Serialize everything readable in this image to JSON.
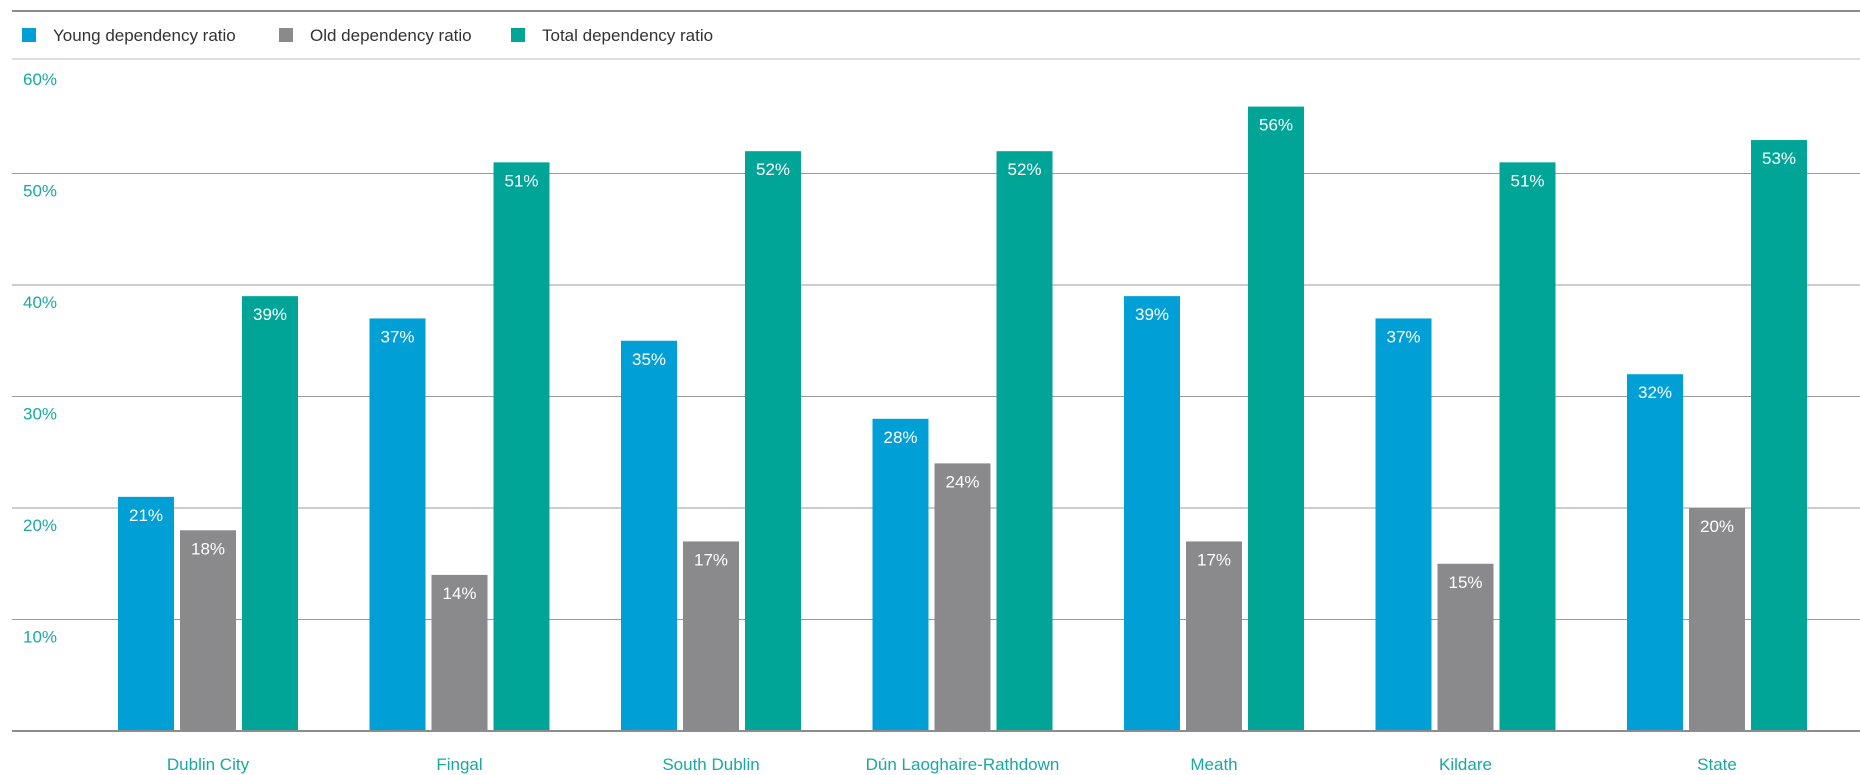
{
  "chart_data": {
    "type": "bar",
    "title": "",
    "xlabel": "",
    "ylabel": "",
    "ylim": [
      0,
      60
    ],
    "yticks": [
      "10%",
      "20%",
      "30%",
      "40%",
      "50%",
      "60%"
    ],
    "ytick_values": [
      10,
      20,
      30,
      40,
      50,
      60
    ],
    "grid": true,
    "legend_position": "top-left",
    "categories": [
      "Dublin City",
      "Fingal",
      "South Dublin",
      "Dún Laoghaire-Rathdown",
      "Meath",
      "Kildare",
      "State"
    ],
    "series": [
      {
        "name": "Young dependency ratio",
        "color": "#00a0d6",
        "values": [
          21,
          37,
          35,
          28,
          39,
          37,
          32
        ],
        "labels": [
          "21%",
          "37%",
          "35%",
          "28%",
          "39%",
          "37%",
          "32%"
        ]
      },
      {
        "name": "Old dependency ratio",
        "color": "#8a8a8c",
        "values": [
          18,
          14,
          17,
          24,
          17,
          15,
          20
        ],
        "labels": [
          "18%",
          "14%",
          "17%",
          "24%",
          "17%",
          "15%",
          "20%"
        ]
      },
      {
        "name": "Total dependency ratio",
        "color": "#00a597",
        "values": [
          39,
          51,
          52,
          52,
          56,
          51,
          53
        ],
        "labels": [
          "39%",
          "51%",
          "52%",
          "52%",
          "56%",
          "51%",
          "53%"
        ]
      }
    ]
  }
}
